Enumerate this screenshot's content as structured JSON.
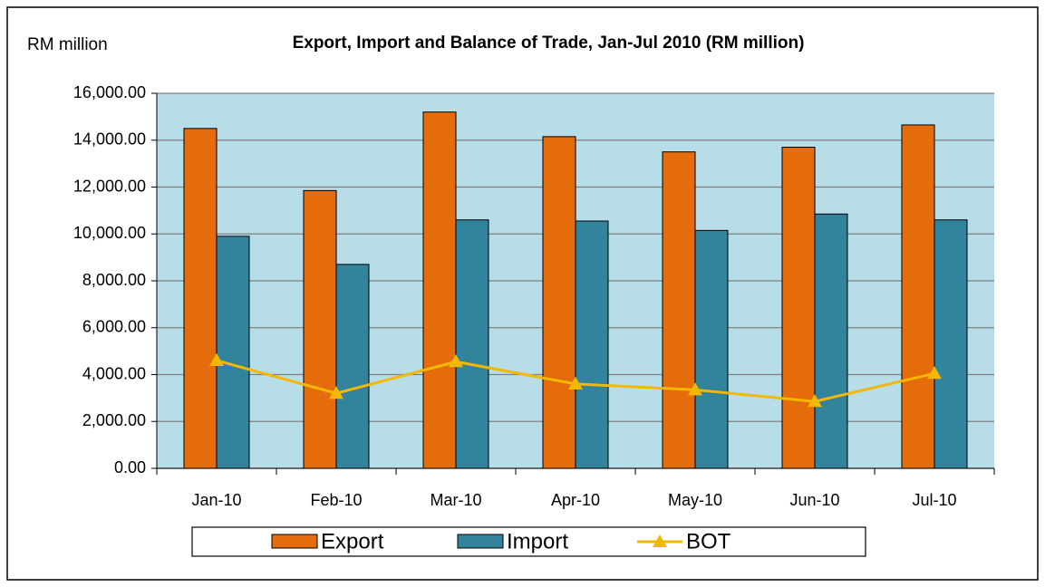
{
  "chart_data": {
    "type": "bar_line",
    "title": "Export, Import and Balance of Trade, Jan-Jul 2010 (RM million)",
    "y_label": "RM million",
    "categories": [
      "Jan-10",
      "Feb-10",
      "Mar-10",
      "Apr-10",
      "May-10",
      "Jun-10",
      "Jul-10"
    ],
    "series": [
      {
        "name": "Export",
        "type": "bar",
        "color": "#e46c0a",
        "values": [
          14500,
          11850,
          15200,
          14150,
          13500,
          13700,
          14650
        ]
      },
      {
        "name": "Import",
        "type": "bar",
        "color": "#31849b",
        "values": [
          9900,
          8700,
          10600,
          10550,
          10150,
          10850,
          10600
        ]
      },
      {
        "name": "BOT",
        "type": "line",
        "color": "#f5b800",
        "values": [
          4600,
          3200,
          4550,
          3600,
          3350,
          2850,
          4050
        ]
      }
    ],
    "ylim": [
      0,
      16000
    ],
    "yticks": [
      {
        "value": 0,
        "label": "0.00"
      },
      {
        "value": 2000,
        "label": "2,000.00"
      },
      {
        "value": 4000,
        "label": "4,000.00"
      },
      {
        "value": 6000,
        "label": "6,000.00"
      },
      {
        "value": 8000,
        "label": "8,000.00"
      },
      {
        "value": 10000,
        "label": "10,000.00"
      },
      {
        "value": 12000,
        "label": "12,000.00"
      },
      {
        "value": 14000,
        "label": "14,000.00"
      },
      {
        "value": 16000,
        "label": "16,000.00"
      }
    ],
    "grid": true,
    "plot_background": "#b7dde8",
    "legend": "bottom"
  }
}
